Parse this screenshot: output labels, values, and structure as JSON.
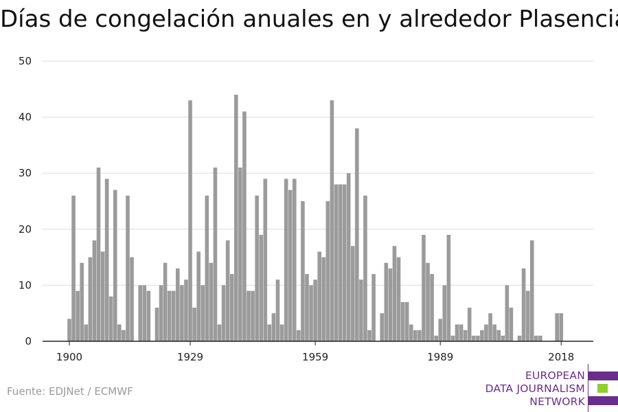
{
  "title": "Días de congelación anuales en y alrededor Plasencia",
  "source": "Fuente: EDJNet / ECMWF",
  "logo": {
    "lines": [
      "EUROPEAN",
      "DATA JOURNALISM",
      "NETWORK"
    ],
    "colors": {
      "purple": "#6b2d8c",
      "green": "#8fcf2f"
    }
  },
  "colors": {
    "bar": "#9b9b9b",
    "grid": "#dddddd",
    "axis": "#222222"
  },
  "chart_data": {
    "type": "bar",
    "title": "Días de congelación anuales en y alrededor Plasencia",
    "xlabel": "",
    "ylabel": "",
    "ylim": [
      0,
      50
    ],
    "yticks": [
      0,
      10,
      20,
      30,
      40,
      50
    ],
    "xticks": [
      1900,
      1929,
      1959,
      1989,
      2018
    ],
    "grid": true,
    "start_year": 1900,
    "years": [
      1900,
      1901,
      1902,
      1903,
      1904,
      1905,
      1906,
      1907,
      1908,
      1909,
      1910,
      1911,
      1912,
      1913,
      1914,
      1915,
      1916,
      1917,
      1918,
      1919,
      1920,
      1921,
      1922,
      1923,
      1924,
      1925,
      1926,
      1927,
      1928,
      1929,
      1930,
      1931,
      1932,
      1933,
      1934,
      1935,
      1936,
      1937,
      1938,
      1939,
      1940,
      1941,
      1942,
      1943,
      1944,
      1945,
      1946,
      1947,
      1948,
      1949,
      1950,
      1951,
      1952,
      1953,
      1954,
      1955,
      1956,
      1957,
      1958,
      1959,
      1960,
      1961,
      1962,
      1963,
      1964,
      1965,
      1966,
      1967,
      1968,
      1969,
      1970,
      1971,
      1972,
      1973,
      1974,
      1975,
      1976,
      1977,
      1978,
      1979,
      1980,
      1981,
      1982,
      1983,
      1984,
      1985,
      1986,
      1987,
      1988,
      1989,
      1990,
      1991,
      1992,
      1993,
      1994,
      1995,
      1996,
      1997,
      1998,
      1999,
      2000,
      2001,
      2002,
      2003,
      2004,
      2005,
      2006,
      2007,
      2008,
      2009,
      2010,
      2011,
      2012,
      2013,
      2014,
      2015,
      2016,
      2017,
      2018,
      2019
    ],
    "values": [
      4,
      26,
      9,
      14,
      3,
      15,
      18,
      31,
      16,
      29,
      8,
      27,
      3,
      2,
      26,
      15,
      0,
      10,
      10,
      9,
      0,
      6,
      10,
      14,
      9,
      9,
      13,
      10,
      11,
      43,
      6,
      16,
      10,
      26,
      14,
      31,
      3,
      10,
      18,
      12,
      44,
      31,
      41,
      9,
      9,
      26,
      19,
      29,
      3,
      5,
      11,
      3,
      29,
      27,
      29,
      2,
      25,
      12,
      10,
      11,
      16,
      15,
      25,
      43,
      28,
      28,
      28,
      30,
      17,
      38,
      11,
      26,
      2,
      12,
      0,
      5,
      14,
      13,
      17,
      15,
      7,
      7,
      3,
      2,
      2,
      19,
      14,
      12,
      1,
      4,
      10,
      19,
      1,
      3,
      3,
      2,
      6,
      1,
      1,
      2,
      3,
      5,
      3,
      2,
      1,
      10,
      6,
      0,
      1,
      13,
      9,
      18,
      1,
      1,
      0,
      0,
      0,
      5,
      5,
      0
    ]
  }
}
